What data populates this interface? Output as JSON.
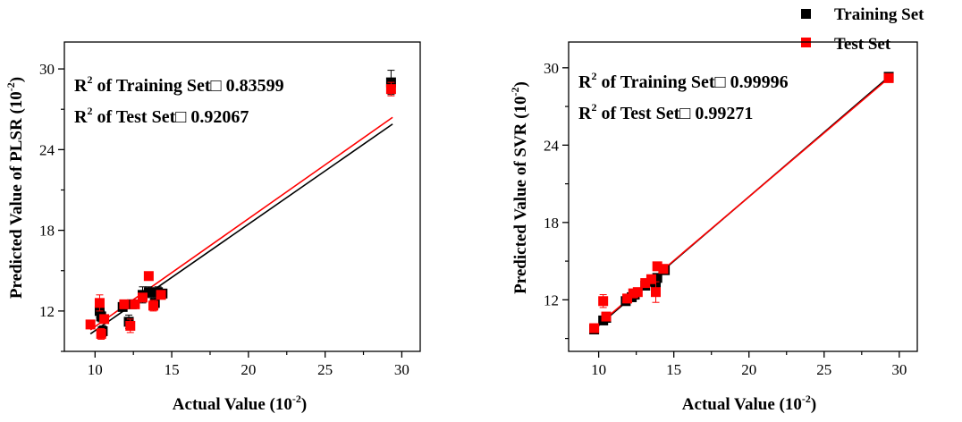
{
  "legend": {
    "placement": "top-right",
    "items": [
      {
        "label": "Training Set",
        "color": "#000000",
        "marker": "square"
      },
      {
        "label": "Test Set",
        "color": "#ff0000",
        "marker": "square"
      }
    ]
  },
  "chart_data": [
    {
      "type": "scatter",
      "title": "",
      "xlabel": "Actual Value (10",
      "xlabel_sup": "-2",
      "xlabel_end": ")",
      "ylabel": "Predicted Value of PLSR (10",
      "ylabel_sup": "-2",
      "ylabel_end": ")",
      "xlim": [
        8,
        31.2
      ],
      "ylim": [
        9.0,
        32.0
      ],
      "xticks": [
        10,
        15,
        20,
        25,
        30
      ],
      "yticks": [
        12,
        18,
        24,
        30
      ],
      "grid": false,
      "annotations": [
        {
          "pre": "R",
          "sup": "2",
          "post": " of Training Set□ 0.83599"
        },
        {
          "pre": "R",
          "sup": "2",
          "post": " of Test Set□ 0.92067"
        }
      ],
      "series": [
        {
          "name": "Training Set",
          "color": "#000000",
          "points": [
            [
              10.3,
              12.0
            ],
            [
              10.4,
              11.6
            ],
            [
              10.5,
              10.5
            ],
            [
              11.8,
              12.3
            ],
            [
              12.2,
              11.2
            ],
            [
              12.4,
              12.5
            ],
            [
              13.1,
              13.2
            ],
            [
              13.5,
              13.4
            ],
            [
              13.9,
              12.6
            ],
            [
              14.1,
              13.4
            ],
            [
              14.4,
              13.3
            ],
            [
              29.3,
              29.0
            ]
          ],
          "errors": [
            0.5,
            0.4,
            0.4,
            0.3,
            0.5,
            0.3,
            0.6,
            0.4,
            0.4,
            0.4,
            0.3,
            0.9
          ],
          "fit": {
            "x": [
              9.7,
              29.4
            ],
            "y": [
              10.3,
              25.9
            ]
          }
        },
        {
          "name": "Test Set",
          "color": "#ff0000",
          "points": [
            [
              9.7,
              11.0
            ],
            [
              10.3,
              12.6
            ],
            [
              10.4,
              10.3
            ],
            [
              10.6,
              11.4
            ],
            [
              11.9,
              12.5
            ],
            [
              12.3,
              10.9
            ],
            [
              12.6,
              12.5
            ],
            [
              13.1,
              13.0
            ],
            [
              13.5,
              14.6
            ],
            [
              13.8,
              12.4
            ],
            [
              14.3,
              13.2
            ],
            [
              29.3,
              28.5
            ]
          ],
          "errors": [
            0.3,
            0.6,
            0.4,
            0.3,
            0.3,
            0.5,
            0.3,
            0.3,
            0.3,
            0.4,
            0.3,
            0.5
          ],
          "fit": {
            "x": [
              9.7,
              29.4
            ],
            "y": [
              10.6,
              26.4
            ]
          }
        }
      ]
    },
    {
      "type": "scatter",
      "title": "",
      "xlabel": "Actual Value (10",
      "xlabel_sup": "-2",
      "xlabel_end": ")",
      "ylabel": "Predicted Value of SVR (10",
      "ylabel_sup": "-2",
      "ylabel_end": ")",
      "xlim": [
        8,
        31.2
      ],
      "ylim": [
        8.0,
        32.0
      ],
      "xticks": [
        10,
        15,
        20,
        25,
        30
      ],
      "yticks": [
        12,
        18,
        24,
        30
      ],
      "grid": false,
      "annotations": [
        {
          "pre": "R",
          "sup": "2",
          "post": " of Training Set□ 0.99996"
        },
        {
          "pre": "R",
          "sup": "2",
          "post": " of Test Set□ 0.99271"
        }
      ],
      "series": [
        {
          "name": "Training Set",
          "color": "#000000",
          "points": [
            [
              9.7,
              9.7
            ],
            [
              10.3,
              10.4
            ],
            [
              10.5,
              10.6
            ],
            [
              11.8,
              11.9
            ],
            [
              12.2,
              12.2
            ],
            [
              12.4,
              12.4
            ],
            [
              13.1,
              13.1
            ],
            [
              13.5,
              13.4
            ],
            [
              13.8,
              13.2
            ],
            [
              13.9,
              13.7
            ],
            [
              14.4,
              14.3
            ],
            [
              29.3,
              29.3
            ]
          ],
          "errors": [
            0.2,
            0.2,
            0.2,
            0.2,
            0.3,
            0.2,
            0.3,
            0.3,
            0.6,
            0.3,
            0.2,
            0.2
          ],
          "fit": {
            "x": [
              9.7,
              29.4
            ],
            "y": [
              9.7,
              29.4
            ]
          }
        },
        {
          "name": "Test Set",
          "color": "#ff0000",
          "points": [
            [
              9.7,
              9.8
            ],
            [
              10.3,
              11.9
            ],
            [
              10.5,
              10.7
            ],
            [
              11.9,
              12.1
            ],
            [
              12.3,
              12.5
            ],
            [
              12.6,
              12.6
            ],
            [
              13.1,
              13.3
            ],
            [
              13.5,
              13.6
            ],
            [
              13.8,
              12.6
            ],
            [
              13.9,
              14.6
            ],
            [
              14.3,
              14.4
            ],
            [
              29.3,
              29.2
            ]
          ],
          "errors": [
            0.2,
            0.5,
            0.2,
            0.3,
            0.3,
            0.2,
            0.2,
            0.2,
            0.8,
            0.3,
            0.2,
            0.2
          ],
          "fit": {
            "x": [
              9.7,
              29.4
            ],
            "y": [
              9.8,
              29.3
            ]
          }
        }
      ]
    }
  ]
}
